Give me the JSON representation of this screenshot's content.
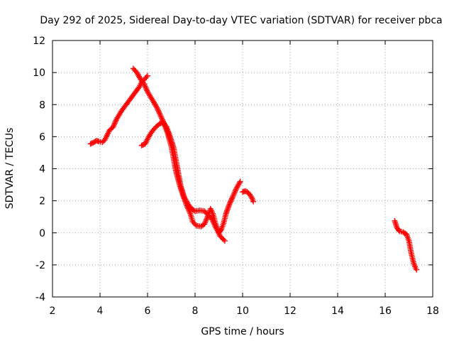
{
  "chart_data": {
    "type": "scatter",
    "title": "Day 292 of 2025, Sidereal Day-to-day VTEC variation (SDTVAR) for receiver pbca",
    "xlabel": "GPS time / hours",
    "ylabel": "SDTVAR / TECUs",
    "xlim": [
      2,
      18
    ],
    "ylim": [
      -4,
      12
    ],
    "xticks": [
      "2",
      "4",
      "6",
      "8",
      "10",
      "12",
      "14",
      "16",
      "18"
    ],
    "yticks": [
      "-4",
      "-2",
      "0",
      "2",
      "4",
      "6",
      "8",
      "10",
      "12"
    ],
    "grid": true,
    "marker": "+",
    "series_color": "#ff0000",
    "segments": [
      {
        "name": "track-1",
        "points": [
          [
            3.6,
            5.55
          ],
          [
            3.75,
            5.65
          ],
          [
            3.85,
            5.75
          ],
          [
            3.95,
            5.7
          ],
          [
            4.1,
            5.65
          ],
          [
            4.2,
            5.8
          ],
          [
            4.3,
            6.1
          ],
          [
            4.4,
            6.4
          ],
          [
            4.55,
            6.6
          ],
          [
            4.7,
            7.1
          ],
          [
            4.9,
            7.6
          ],
          [
            5.1,
            8.0
          ],
          [
            5.3,
            8.4
          ],
          [
            5.5,
            8.8
          ],
          [
            5.65,
            9.1
          ],
          [
            5.75,
            9.4
          ],
          [
            5.85,
            9.55
          ],
          [
            6.0,
            9.8
          ]
        ]
      },
      {
        "name": "track-2",
        "points": [
          [
            5.4,
            10.25
          ],
          [
            5.55,
            10.0
          ],
          [
            5.7,
            9.6
          ],
          [
            5.85,
            9.3
          ],
          [
            6.0,
            8.8
          ],
          [
            6.2,
            8.3
          ],
          [
            6.4,
            7.8
          ],
          [
            6.55,
            7.3
          ],
          [
            6.7,
            6.8
          ],
          [
            6.85,
            6.2
          ],
          [
            7.0,
            5.4
          ],
          [
            7.1,
            4.6
          ],
          [
            7.2,
            3.8
          ],
          [
            7.35,
            3.0
          ],
          [
            7.5,
            2.3
          ],
          [
            7.65,
            1.7
          ],
          [
            7.8,
            1.2
          ],
          [
            7.9,
            0.7
          ],
          [
            8.05,
            0.45
          ],
          [
            8.25,
            0.4
          ],
          [
            8.4,
            0.55
          ],
          [
            8.55,
            1.1
          ],
          [
            8.65,
            1.5
          ],
          [
            8.75,
            1.2
          ],
          [
            8.85,
            0.6
          ],
          [
            8.95,
            0.15
          ],
          [
            9.05,
            -0.2
          ],
          [
            9.15,
            -0.35
          ],
          [
            9.25,
            -0.5
          ]
        ]
      },
      {
        "name": "track-3",
        "points": [
          [
            5.75,
            5.45
          ],
          [
            5.9,
            5.55
          ],
          [
            6.05,
            6.0
          ],
          [
            6.2,
            6.35
          ],
          [
            6.35,
            6.6
          ],
          [
            6.5,
            6.8
          ],
          [
            6.65,
            6.9
          ],
          [
            6.8,
            6.6
          ],
          [
            6.95,
            6.0
          ],
          [
            7.1,
            5.3
          ],
          [
            7.2,
            4.5
          ],
          [
            7.3,
            3.7
          ],
          [
            7.4,
            2.9
          ],
          [
            7.55,
            2.2
          ],
          [
            7.7,
            1.8
          ],
          [
            7.85,
            1.5
          ],
          [
            8.0,
            1.35
          ],
          [
            8.2,
            1.4
          ],
          [
            8.4,
            1.35
          ],
          [
            8.55,
            1.1
          ],
          [
            8.7,
            0.9
          ],
          [
            8.85,
            0.4
          ],
          [
            9.0,
            0.0
          ],
          [
            9.1,
            0.2
          ],
          [
            9.2,
            0.6
          ],
          [
            9.3,
            1.2
          ],
          [
            9.45,
            1.8
          ],
          [
            9.6,
            2.3
          ],
          [
            9.75,
            2.8
          ],
          [
            9.9,
            3.2
          ]
        ]
      },
      {
        "name": "track-4",
        "points": [
          [
            10.0,
            2.55
          ],
          [
            10.1,
            2.6
          ],
          [
            10.2,
            2.55
          ],
          [
            10.3,
            2.4
          ],
          [
            10.4,
            2.15
          ],
          [
            10.45,
            1.95
          ]
        ]
      },
      {
        "name": "track-5",
        "points": [
          [
            16.4,
            0.75
          ],
          [
            16.5,
            0.3
          ],
          [
            16.6,
            0.1
          ],
          [
            16.75,
            0.05
          ],
          [
            16.9,
            -0.1
          ],
          [
            17.0,
            -0.5
          ],
          [
            17.05,
            -0.9
          ],
          [
            17.1,
            -1.3
          ],
          [
            17.15,
            -1.6
          ],
          [
            17.2,
            -1.9
          ],
          [
            17.28,
            -2.2
          ],
          [
            17.32,
            -2.3
          ]
        ]
      }
    ]
  }
}
